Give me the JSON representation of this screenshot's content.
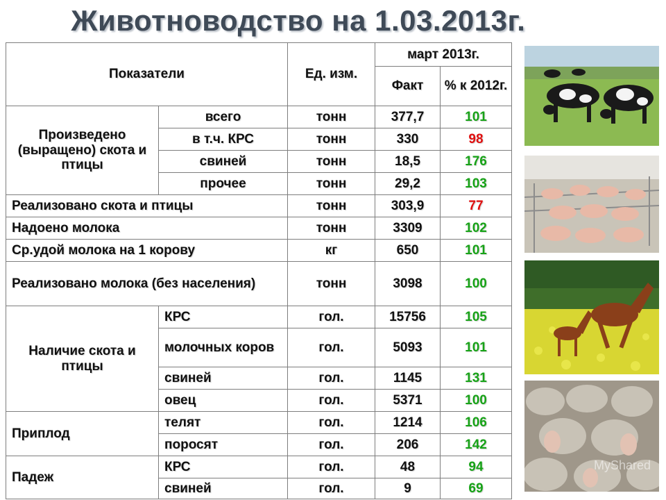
{
  "title": "Животноводство на 1.03.2013г.",
  "header": {
    "indicators": "Показатели",
    "unit": "Ед. изм.",
    "period": "март 2013г.",
    "fact": "Факт",
    "percent": "% к 2012г."
  },
  "groups": {
    "produced": "Произведено (выращено) скота и птицы",
    "stock": "Наличие скота и птицы",
    "offspring": "Приплод",
    "loss": "Падеж"
  },
  "rows": [
    {
      "label": "всего",
      "unit": "тонн",
      "fact": "377,7",
      "pct": "101",
      "pct_color": "#17a317"
    },
    {
      "label": "в т.ч. КРС",
      "unit": "тонн",
      "fact": "330",
      "pct": "98",
      "pct_color": "#e01010"
    },
    {
      "label": "свиней",
      "unit": "тонн",
      "fact": "18,5",
      "pct": "176",
      "pct_color": "#17a317"
    },
    {
      "label": "прочее",
      "unit": "тонн",
      "fact": "29,2",
      "pct": "103",
      "pct_color": "#17a317"
    },
    {
      "label": "Реализовано скота и птицы",
      "unit": "тонн",
      "fact": "303,9",
      "pct": "77",
      "pct_color": "#e01010"
    },
    {
      "label": "Надоено молока",
      "unit": "тонн",
      "fact": "3309",
      "pct": "102",
      "pct_color": "#17a317"
    },
    {
      "label": "Ср.удой молока на 1 корову",
      "unit": "кг",
      "fact": "650",
      "pct": "101",
      "pct_color": "#17a317"
    },
    {
      "label": "Реализовано молока (без населения)",
      "unit": "тонн",
      "fact": "3098",
      "pct": "100",
      "pct_color": "#17a317"
    },
    {
      "label": "КРС",
      "unit": "гол.",
      "fact": "15756",
      "pct": "105",
      "pct_color": "#17a317"
    },
    {
      "label": "молочных коров",
      "unit": "гол.",
      "fact": "5093",
      "pct": "101",
      "pct_color": "#17a317"
    },
    {
      "label": "свиней",
      "unit": "гол.",
      "fact": "1145",
      "pct": "131",
      "pct_color": "#17a317"
    },
    {
      "label": "овец",
      "unit": "гол.",
      "fact": "5371",
      "pct": "100",
      "pct_color": "#17a317"
    },
    {
      "label": "телят",
      "unit": "гол.",
      "fact": "1214",
      "pct": "106",
      "pct_color": "#17a317"
    },
    {
      "label": "поросят",
      "unit": "гол.",
      "fact": "206",
      "pct": "142",
      "pct_color": "#17a317"
    },
    {
      "label": "КРС",
      "unit": "гол.",
      "fact": "48",
      "pct": "94",
      "pct_color": "#17a317"
    },
    {
      "label": "свиней",
      "unit": "гол.",
      "fact": "9",
      "pct": "69",
      "pct_color": "#17a317"
    }
  ],
  "photos": [
    {
      "subject": "cows-grazing-photo"
    },
    {
      "subject": "pigs-in-barn-photo"
    },
    {
      "subject": "horses-in-field-photo"
    },
    {
      "subject": "sheep-flock-photo"
    }
  ],
  "watermark": "MyShared"
}
